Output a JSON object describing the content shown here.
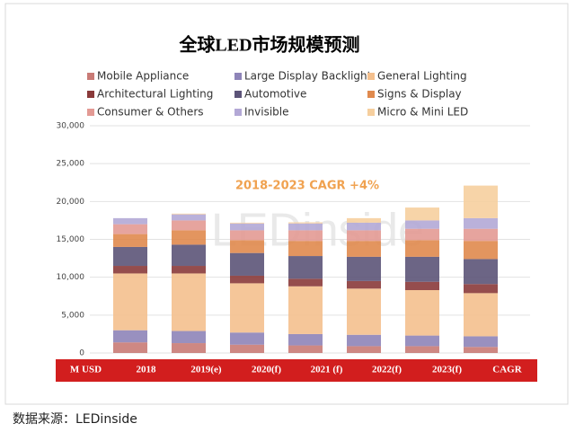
{
  "chart_data": {
    "type": "stacked_bar",
    "title": "全球LED市场规模预测",
    "annotation": "2018-2023 CAGR +4%",
    "watermark": "LEDinside",
    "source": "数据来源：LEDinside",
    "axis_header": "M USD",
    "last_column": "CAGR",
    "categories": [
      null,
      "2018",
      "2019(e)",
      "2020(f)",
      "2021 (f)",
      "2022(f)",
      "2023(f)"
    ],
    "ylim": [
      0,
      30000
    ],
    "yticks": [
      0,
      {
        "value": 5000,
        "label": "5,000"
      },
      {
        "value": 10000,
        "label": "10,000"
      },
      {
        "value": 15000,
        "label": "15,000"
      },
      {
        "value": 20000,
        "label": "20,000"
      },
      {
        "value": 25000,
        "label": "25,000"
      },
      {
        "value": 30000,
        "label": "30,000"
      }
    ],
    "grid": true,
    "series": [
      {
        "name": "Mobile Appliance",
        "color": "#c97b76",
        "values": [
          1400,
          1300,
          1100,
          1000,
          900,
          900,
          800
        ]
      },
      {
        "name": "Large Display Backlight",
        "color": "#8e84b8",
        "values": [
          1600,
          1600,
          1600,
          1500,
          1500,
          1400,
          1400
        ]
      },
      {
        "name": "General Lighting",
        "color": "#f4c08e",
        "values": [
          7500,
          7600,
          6500,
          6300,
          6100,
          6000,
          5700
        ]
      },
      {
        "name": "Architectural Lighting",
        "color": "#8a3a3a",
        "values": [
          1000,
          1000,
          1000,
          1000,
          1000,
          1100,
          1200
        ]
      },
      {
        "name": "Automotive",
        "color": "#5c5478",
        "values": [
          2500,
          2800,
          3000,
          3000,
          3200,
          3300,
          3300
        ]
      },
      {
        "name": "Signs & Display",
        "color": "#e08a4e",
        "values": [
          1700,
          1900,
          1700,
          2000,
          2100,
          2200,
          2400
        ]
      },
      {
        "name": "Consumer & Others",
        "color": "#e39a94",
        "values": [
          1300,
          1300,
          1300,
          1400,
          1400,
          1500,
          1600
        ]
      },
      {
        "name": "Invisible",
        "color": "#b3a8d6",
        "values": [
          800,
          800,
          900,
          900,
          1000,
          1100,
          1400
        ]
      },
      {
        "name": "Micro & Mini LED",
        "color": "#f6cf9e",
        "values": [
          0,
          100,
          100,
          150,
          600,
          1700,
          4300
        ]
      }
    ]
  }
}
